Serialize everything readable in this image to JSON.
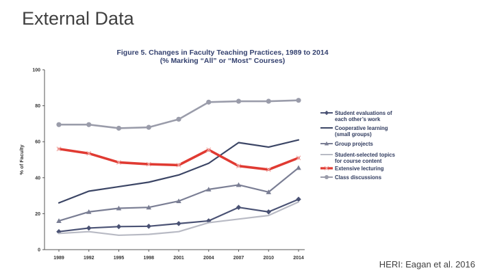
{
  "slide": {
    "title": "External Data",
    "source": "HERI: Eagan et al. 2016"
  },
  "chart_data": {
    "type": "line",
    "title_line1": "Figure 5. Changes in Faculty Teaching Practices, 1989 to 2014",
    "title_line2": "(% Marking “All” or “Most” Courses)",
    "ylabel": "% of Faculty",
    "xlabel": "",
    "ylim": [
      0,
      100
    ],
    "yticks": [
      0,
      20,
      40,
      60,
      80,
      100
    ],
    "x": [
      "1989",
      "1992",
      "1995",
      "1998",
      "2001",
      "2004",
      "2007",
      "2010",
      "2014"
    ],
    "grid": false,
    "legend_position": "right",
    "series": [
      {
        "name": "Student evaluations of each other’s work",
        "legend_lines": [
          "Student evaluations of",
          "each other’s work"
        ],
        "marker": "diamond",
        "color": "#4a5274",
        "width": 2.2,
        "values": [
          10,
          12,
          12.8,
          13,
          14.5,
          16,
          23.5,
          21,
          28
        ]
      },
      {
        "name": "Cooperative learning (small groups)",
        "legend_lines": [
          "Cooperative learning",
          "(small groups)"
        ],
        "marker": "none",
        "color": "#3b4565",
        "width": 2.2,
        "values": [
          26,
          32.5,
          35,
          37.5,
          41.5,
          48,
          59.5,
          57,
          61
        ]
      },
      {
        "name": "Group projects",
        "legend_lines": [
          "Group projects"
        ],
        "marker": "triangle",
        "color": "#7a7e94",
        "width": 2.2,
        "values": [
          16,
          21,
          23,
          23.5,
          27,
          33.5,
          36,
          32,
          45.5
        ]
      },
      {
        "name": "Student-selected topics for course content",
        "legend_lines": [
          "Student-selected topics",
          "for course content"
        ],
        "marker": "none",
        "color": "#b8bac4",
        "width": 2.2,
        "values": [
          9,
          10,
          8,
          8.5,
          10,
          15,
          17,
          19,
          26.5
        ]
      },
      {
        "name": "Extensive lecturing",
        "legend_lines": [
          "Extensive lecturing"
        ],
        "marker": "x",
        "color": "#e03a32",
        "width": 3.6,
        "values": [
          56,
          53.5,
          48.5,
          47.5,
          47,
          55.5,
          46.5,
          44.5,
          51
        ]
      },
      {
        "name": "Class discussions",
        "legend_lines": [
          "Class discussions"
        ],
        "marker": "circle",
        "color": "#9a9caa",
        "width": 2.6,
        "values": [
          69.5,
          69.5,
          67.5,
          68,
          72.5,
          82,
          82.5,
          82.5,
          83
        ]
      }
    ]
  }
}
